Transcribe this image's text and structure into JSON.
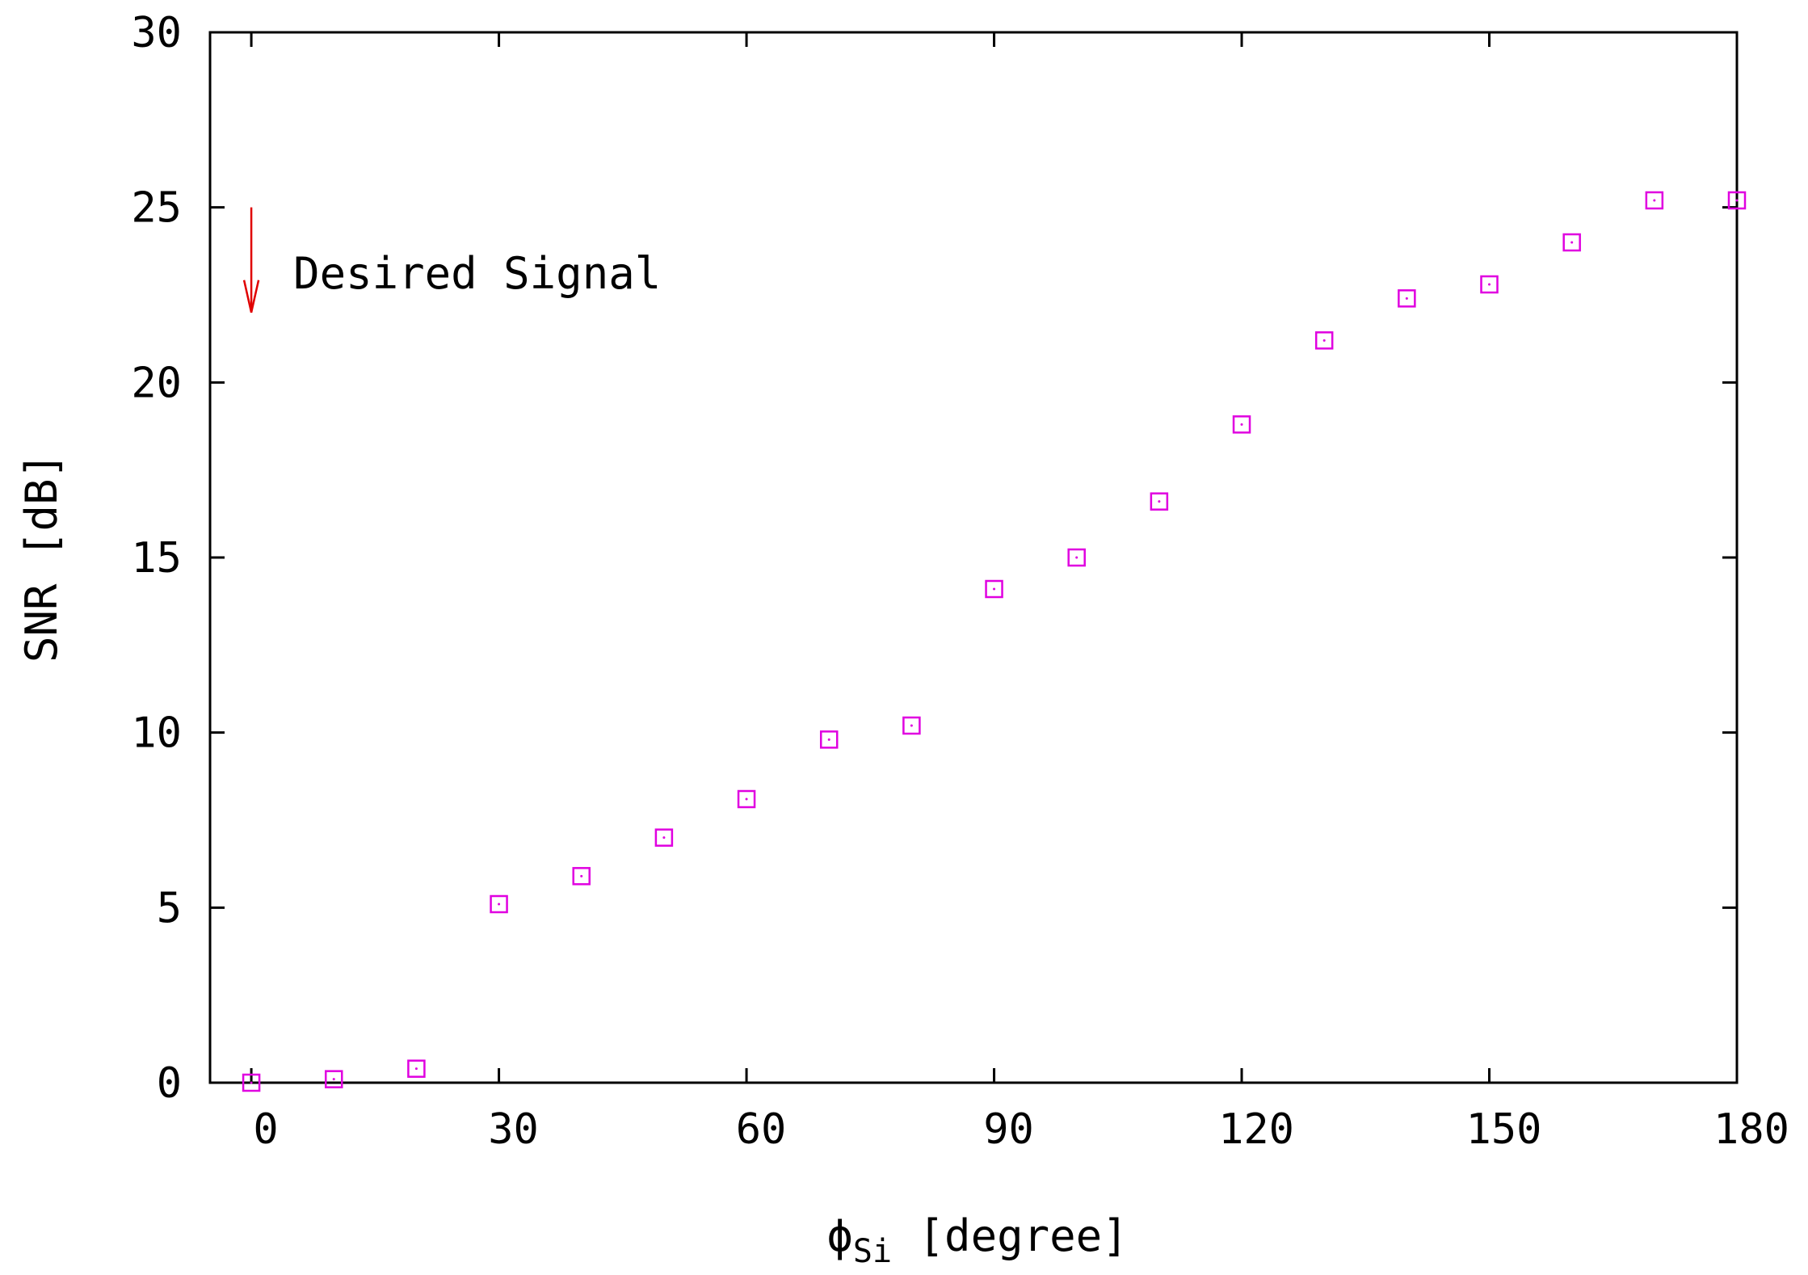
{
  "chart_data": {
    "type": "scatter",
    "xlabel_symbol": "ϕ",
    "xlabel_subscript": "Si",
    "xlabel_rest": " [degree]",
    "ylabel": "SNR [dB]",
    "xlim": [
      -5,
      180
    ],
    "ylim": [
      0,
      30
    ],
    "xticks": [
      0,
      30,
      60,
      90,
      120,
      150,
      180
    ],
    "yticks": [
      0,
      5,
      10,
      15,
      20,
      25,
      30
    ],
    "grid": false,
    "marker": "open-square",
    "color": "#e000e0",
    "annotation": {
      "text": "Desired Signal",
      "arrow_color": "#e00000",
      "arrow_x": 0,
      "arrow_y_from": 25,
      "arrow_y_to": 22
    },
    "series": [
      {
        "x": [
          0,
          10,
          20,
          30,
          40,
          50,
          60,
          70,
          80,
          90,
          100,
          110,
          120,
          130,
          140,
          150,
          160,
          170,
          180
        ],
        "y": [
          0.0,
          0.1,
          0.4,
          5.1,
          5.9,
          7.0,
          8.1,
          9.8,
          10.2,
          14.1,
          15.0,
          16.6,
          18.8,
          21.2,
          22.4,
          22.8,
          24.0,
          25.2,
          25.2
        ]
      }
    ]
  }
}
